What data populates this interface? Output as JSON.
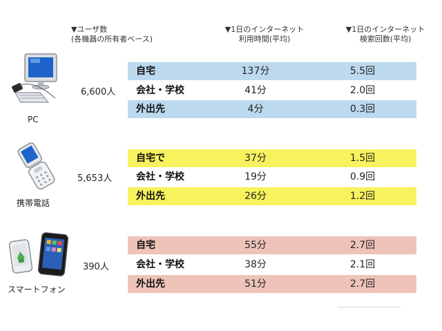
{
  "headers": {
    "users_line1": "▼ユーザ数",
    "users_line2": "(各機器の所有者ベース)",
    "time_line1": "▼1日のインターネット",
    "time_line2": "利用時間(平均)",
    "search_line1": "▼1日のインターネット",
    "search_line2": "検索回数(平均)"
  },
  "groups": [
    {
      "device": "PC",
      "icon": "pc-icon",
      "users": "6,600人",
      "color": "#bcd9ee",
      "rows": [
        {
          "place": "自宅",
          "time": "137分",
          "search": "5.5回",
          "highlight": true
        },
        {
          "place": "会社・学校",
          "time": "41分",
          "search": "2.0回",
          "highlight": false
        },
        {
          "place": "外出先",
          "time": "4分",
          "search": "0.3回",
          "highlight": true
        }
      ]
    },
    {
      "device": "携帯電話",
      "icon": "mobile-phone-icon",
      "users": "5,653人",
      "color": "#f7f25d",
      "rows": [
        {
          "place": "自宅で",
          "time": "37分",
          "search": "1.5回",
          "highlight": true
        },
        {
          "place": "会社・学校",
          "time": "19分",
          "search": "0.9回",
          "highlight": false
        },
        {
          "place": "外出先",
          "time": "26分",
          "search": "1.2回",
          "highlight": true
        }
      ]
    },
    {
      "device": "スマートフォン",
      "icon": "smartphone-icon",
      "users": "390人",
      "color": "#eec3b8",
      "rows": [
        {
          "place": "自宅",
          "time": "55分",
          "search": "2.7回",
          "highlight": true
        },
        {
          "place": "会社・学校",
          "time": "38分",
          "search": "2.1回",
          "highlight": false
        },
        {
          "place": "外出先",
          "time": "51分",
          "search": "2.7回",
          "highlight": true
        }
      ]
    }
  ]
}
